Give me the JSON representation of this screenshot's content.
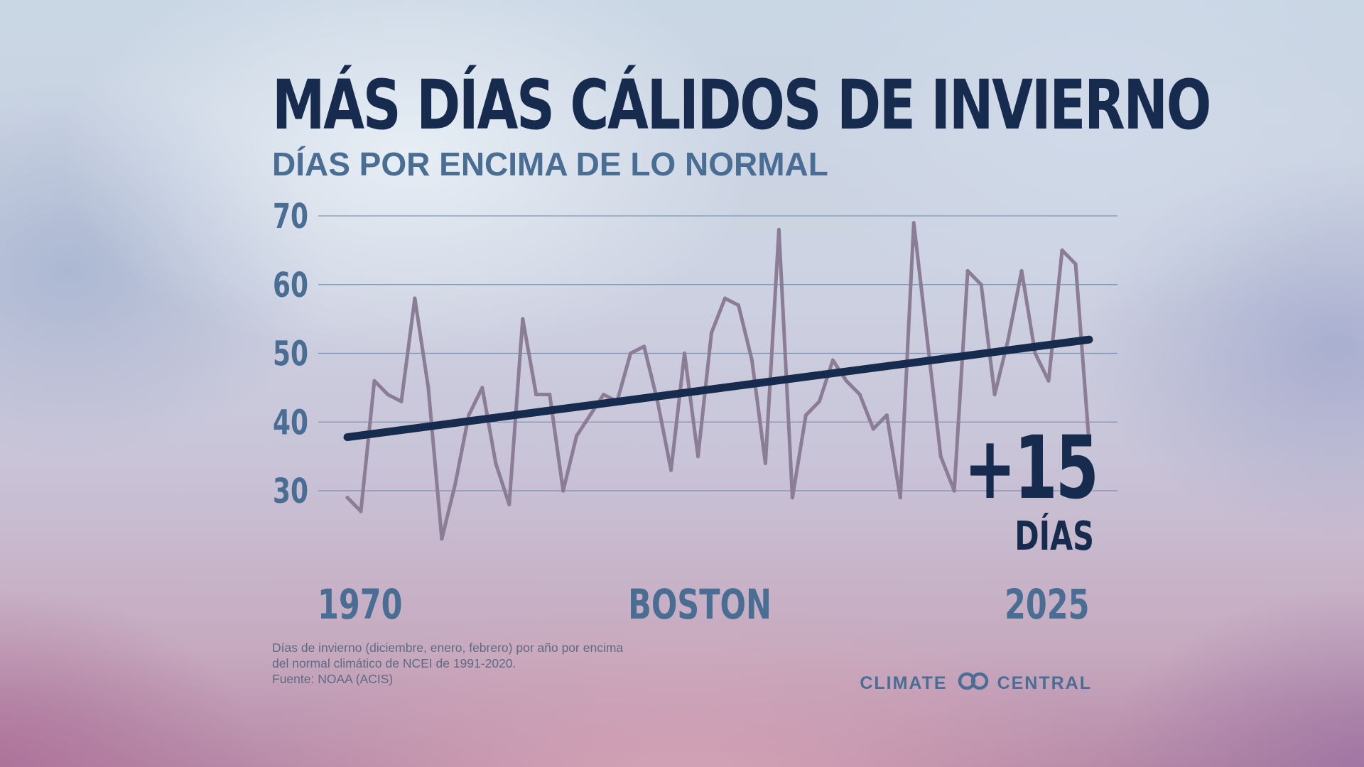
{
  "title": "MÁS DÍAS CÁLIDOS DE INVIERNO",
  "subtitle": "DÍAS POR ENCIMA DE LO NORMAL",
  "location": "BOSTON",
  "callout": {
    "value": "+15",
    "unit": "DÍAS"
  },
  "footnote": {
    "line1": "Días de invierno (diciembre, enero, febrero) por año por encima",
    "line2": "del normal climático de NCEI de 1991-2020.",
    "line3": "Fuente: NOAA (ACIS)"
  },
  "brand": {
    "left": "CLIMATE",
    "right": "CENTRAL",
    "logo_icon": "linked-rings-icon"
  },
  "colors": {
    "title": "#162b4d",
    "subtitle": "#4a6d93",
    "series_line": "#8a7d95",
    "trend_line": "#162b4d",
    "grid": "#6f8aaa"
  },
  "chart_data": {
    "type": "line",
    "title": "MÁS DÍAS CÁLIDOS DE INVIERNO",
    "subtitle": "DÍAS POR ENCIMA DE LO NORMAL",
    "xlabel": "",
    "ylabel": "",
    "x_tick_labels": [
      "1970",
      "2025"
    ],
    "y_ticks": [
      30,
      40,
      50,
      60,
      70
    ],
    "ylim": [
      20,
      70
    ],
    "xlim": [
      1970,
      2025
    ],
    "grid": true,
    "legend": "none",
    "x": [
      1970,
      1971,
      1972,
      1973,
      1974,
      1975,
      1976,
      1977,
      1978,
      1979,
      1980,
      1981,
      1982,
      1983,
      1984,
      1985,
      1986,
      1987,
      1988,
      1989,
      1990,
      1991,
      1992,
      1993,
      1994,
      1995,
      1996,
      1997,
      1998,
      1999,
      2000,
      2001,
      2002,
      2003,
      2004,
      2005,
      2006,
      2007,
      2008,
      2009,
      2010,
      2011,
      2012,
      2013,
      2014,
      2015,
      2016,
      2017,
      2018,
      2019,
      2020,
      2021,
      2022,
      2023,
      2024,
      2025
    ],
    "series": [
      {
        "values": [
          29,
          27,
          46,
          44,
          43,
          58,
          45,
          23,
          31,
          41,
          45,
          34,
          28,
          55,
          44,
          44,
          30,
          38,
          41,
          44,
          43,
          50,
          51,
          43,
          33,
          50,
          35,
          53,
          58,
          57,
          49,
          34,
          68,
          29,
          41,
          43,
          49,
          46,
          44,
          39,
          41,
          29,
          69,
          52,
          35,
          30,
          62,
          60,
          44,
          52,
          62,
          50,
          46,
          65,
          63,
          37
        ]
      }
    ],
    "trend": {
      "x": [
        1970,
        2025
      ],
      "values": [
        37.8,
        52.0
      ]
    },
    "annotation": "+15 DÍAS"
  }
}
